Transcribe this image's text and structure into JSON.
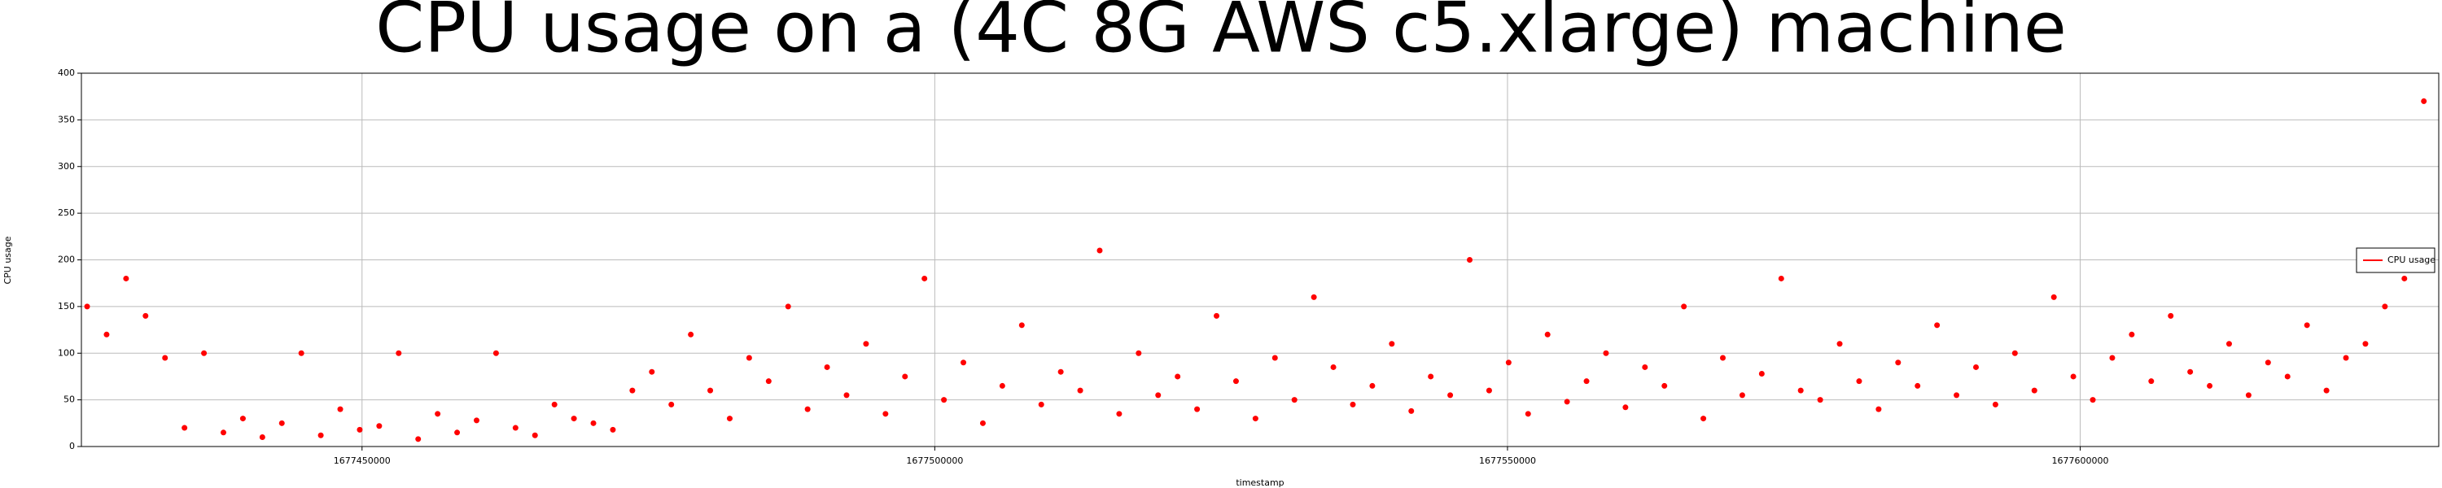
{
  "chart_data": {
    "type": "scatter",
    "title": "CPU usage on a  (4C 8G AWS c5.xlarge) machine",
    "x_label": "timestamp",
    "y_label": "CPU usage",
    "grid": true,
    "legend": "right",
    "xlim": [
      1677425500,
      1677631300
    ],
    "ylim": [
      0,
      400
    ],
    "xticks": [
      1677450000,
      1677500000,
      1677550000,
      1677600000
    ],
    "yticks": [
      0,
      50,
      100,
      150,
      200,
      250,
      300,
      350,
      400
    ],
    "series": [
      {
        "name": "CPU usage",
        "color": "#ff0000",
        "x": [
          1677426000,
          1677427700,
          1677429400,
          1677431100,
          1677432800,
          1677434500,
          1677436200,
          1677437900,
          1677439600,
          1677441300,
          1677443000,
          1677444700,
          1677446400,
          1677448100,
          1677449800,
          1677451500,
          1677453200,
          1677454900,
          1677456600,
          1677458300,
          1677460000,
          1677461700,
          1677463400,
          1677465100,
          1677466800,
          1677468500,
          1677470200,
          1677471900,
          1677473600,
          1677475300,
          1677477000,
          1677478700,
          1677480400,
          1677482100,
          1677483800,
          1677485500,
          1677487200,
          1677488900,
          1677490600,
          1677492300,
          1677494000,
          1677495700,
          1677497400,
          1677499100,
          1677500800,
          1677502500,
          1677504200,
          1677505900,
          1677507600,
          1677509300,
          1677511000,
          1677512700,
          1677514400,
          1677516100,
          1677517800,
          1677519500,
          1677521200,
          1677522900,
          1677524600,
          1677526300,
          1677528000,
          1677529700,
          1677531400,
          1677533100,
          1677534800,
          1677536500,
          1677538200,
          1677539900,
          1677541600,
          1677543300,
          1677545000,
          1677546700,
          1677548400,
          1677550100,
          1677551800,
          1677553500,
          1677555200,
          1677556900,
          1677558600,
          1677560300,
          1677562000,
          1677563700,
          1677565400,
          1677567100,
          1677568800,
          1677570500,
          1677572200,
          1677573900,
          1677575600,
          1677577300,
          1677579000,
          1677580700,
          1677582400,
          1677584100,
          1677585800,
          1677587500,
          1677589200,
          1677590900,
          1677592600,
          1677594300,
          1677596000,
          1677597700,
          1677599400,
          1677601100,
          1677602800,
          1677604500,
          1677606200,
          1677607900,
          1677609600,
          1677611300,
          1677613000,
          1677614700,
          1677616400,
          1677618100,
          1677619800,
          1677621500,
          1677623200,
          1677624900,
          1677626600,
          1677628300,
          1677630000
        ],
        "values": [
          150,
          120,
          180,
          140,
          95,
          20,
          100,
          15,
          30,
          10,
          25,
          100,
          12,
          40,
          18,
          22,
          100,
          8,
          35,
          15,
          28,
          100,
          20,
          12,
          45,
          30,
          25,
          18,
          60,
          80,
          45,
          120,
          60,
          30,
          95,
          70,
          150,
          40,
          85,
          55,
          110,
          35,
          75,
          180,
          50,
          90,
          25,
          65,
          130,
          45,
          80,
          60,
          210,
          35,
          100,
          55,
          75,
          40,
          140,
          70,
          30,
          95,
          50,
          160,
          85,
          45,
          65,
          110,
          38,
          75,
          55,
          200,
          60,
          90,
          35,
          120,
          48,
          70,
          100,
          42,
          85,
          65,
          150,
          30,
          95,
          55,
          78,
          180,
          60,
          50,
          110,
          70,
          40,
          90,
          65,
          130,
          55,
          85,
          45,
          100,
          60,
          160,
          75,
          50,
          95,
          120,
          70,
          140,
          80,
          65,
          110,
          55,
          90,
          75,
          130,
          60,
          95,
          110,
          150,
          180,
          370
        ]
      }
    ]
  }
}
